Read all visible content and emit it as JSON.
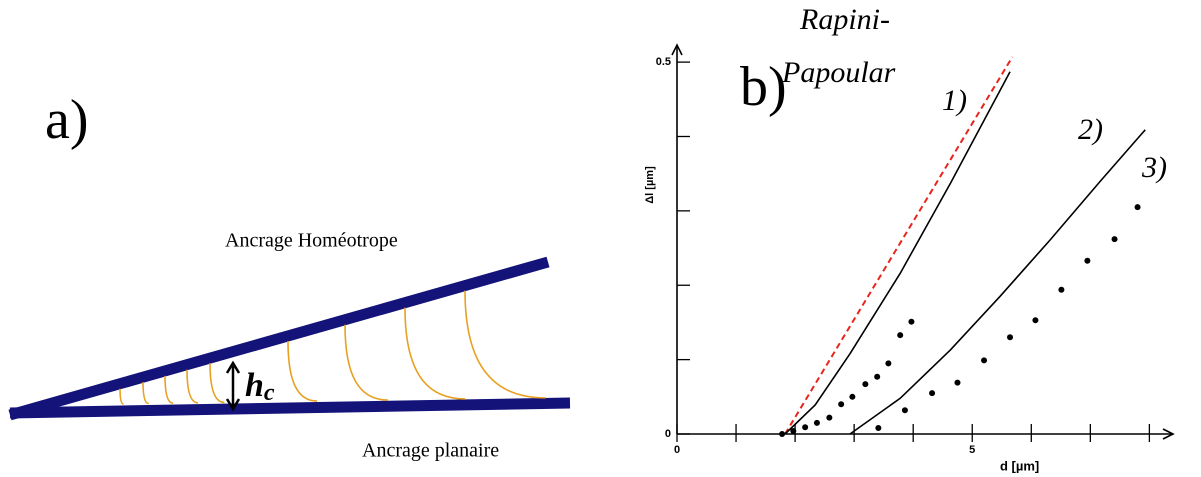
{
  "panel_a": {
    "label": "a)",
    "top_label": "Ancrage Homéotrope",
    "bottom_label": "Ancrage planaire",
    "thickness_symbol": "h",
    "thickness_subscript": "c"
  },
  "chart_data": {
    "type": "scatter",
    "panel_label": "b)",
    "xlabel": "d [µm]",
    "ylabel": "Δl [µm]",
    "annotations": [
      "Rapini-",
      "Papoular"
    ],
    "xlim": [
      0,
      8.4
    ],
    "ylim": [
      0,
      0.523
    ],
    "xticks": [
      0,
      5
    ],
    "yticks": [
      0,
      0.5
    ],
    "minor_xticks": [
      1,
      2,
      3,
      4,
      6,
      7,
      8
    ],
    "minor_yticks": [
      0.1,
      0.2,
      0.3,
      0.4
    ],
    "lines": [
      {
        "name": "1)",
        "color": "#e8241c",
        "dashed": true,
        "x": [
          1.83,
          5.68
        ],
        "values": [
          0,
          0.507
        ]
      },
      {
        "name": "2)",
        "color": "#000000",
        "dashed": false,
        "x": [
          1.83,
          2.34,
          2.93,
          3.78,
          4.63,
          5.64
        ],
        "values": [
          0,
          0.039,
          0.108,
          0.216,
          0.337,
          0.487
        ]
      },
      {
        "name": "3)",
        "color": "#000000",
        "dashed": false,
        "x": [
          2.93,
          3.78,
          4.63,
          5.47,
          6.32,
          7.17,
          7.93
        ],
        "values": [
          0,
          0.048,
          0.113,
          0.185,
          0.261,
          0.34,
          0.409
        ]
      }
    ],
    "series": [
      {
        "color": "#000000",
        "x": [
          1.78,
          1.97,
          2.17,
          2.37,
          2.58,
          2.78,
          2.97,
          3.19,
          3.39,
          3.58,
          3.78,
          3.97
        ],
        "values": [
          0,
          0.004,
          0.009,
          0.015,
          0.022,
          0.04,
          0.05,
          0.067,
          0.077,
          0.095,
          0.133,
          0.151
        ]
      },
      {
        "color": "#000000",
        "x": [
          3.41,
          3.86,
          4.32,
          4.75,
          5.2,
          5.64,
          6.07,
          6.51,
          6.95,
          7.41,
          7.8
        ],
        "values": [
          0.008,
          0.032,
          0.055,
          0.069,
          0.099,
          0.13,
          0.153,
          0.194,
          0.233,
          0.262,
          0.305
        ]
      }
    ]
  }
}
